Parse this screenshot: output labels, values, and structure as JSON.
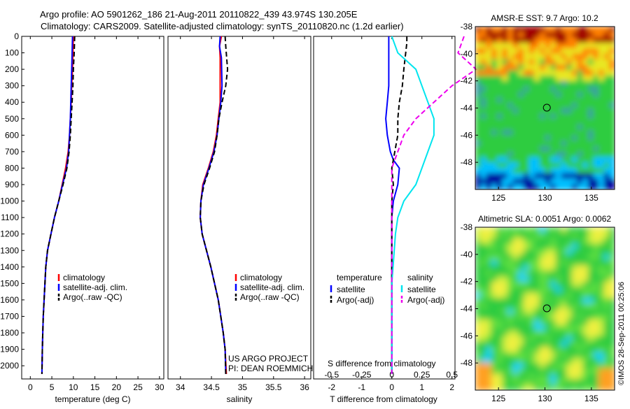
{
  "header": {
    "line1": "Argo profile: AO 5901262_186 21-Aug-2011 20110822_439 43.974S 130.205E",
    "line2": "Climatology: CARS2009. Satellite-adjusted climatology: synTS_20110820.nc (1.2d earlier)"
  },
  "chart_data": [
    {
      "type": "line",
      "id": "temperature",
      "xlabel": "temperature (deg C)",
      "ylabel": "",
      "xlim": [
        -2,
        31
      ],
      "ylim": [
        2080,
        0
      ],
      "xticks": [
        0,
        5,
        10,
        15,
        20,
        25,
        30
      ],
      "yticks": [
        0,
        100,
        200,
        300,
        400,
        500,
        600,
        700,
        800,
        900,
        1000,
        1100,
        1200,
        1300,
        1400,
        1500,
        1600,
        1700,
        1800,
        1900,
        2000
      ],
      "legend": [
        "climatology",
        "satellite-adj. clim.",
        "Argo(..raw -QC)"
      ],
      "colors": [
        "#ff0000",
        "#0000ff",
        "#000000"
      ],
      "series": [
        {
          "name": "climatology",
          "style": "solid",
          "x": [
            10.0,
            9.9,
            9.8,
            9.6,
            9.5,
            9.3,
            9.1,
            8.8,
            8.2,
            7.4,
            6.6,
            5.6,
            4.8,
            4.0,
            3.6,
            3.4,
            3.2,
            3.0,
            2.9,
            2.8,
            2.7
          ],
          "y": [
            0,
            100,
            200,
            300,
            400,
            500,
            600,
            700,
            800,
            900,
            1000,
            1100,
            1200,
            1300,
            1400,
            1500,
            1600,
            1700,
            1800,
            1900,
            2050
          ]
        },
        {
          "name": "satellite-adj. clim.",
          "style": "solid",
          "x": [
            9.8,
            9.7,
            9.6,
            9.5,
            9.4,
            9.3,
            9.1,
            8.9,
            8.4,
            7.5,
            6.6,
            5.6,
            4.8,
            4.0,
            3.6,
            3.4,
            3.2,
            3.0,
            2.9,
            2.8,
            2.7
          ],
          "y": [
            0,
            100,
            200,
            300,
            400,
            500,
            600,
            700,
            800,
            900,
            1000,
            1100,
            1200,
            1300,
            1400,
            1500,
            1600,
            1700,
            1800,
            1900,
            2050
          ]
        },
        {
          "name": "Argo(..raw -QC)",
          "style": "dashed",
          "x": [
            10.3,
            10.2,
            10.0,
            9.9,
            9.7,
            9.5,
            9.3,
            9.0,
            8.5,
            7.6,
            6.6,
            5.6,
            4.8,
            4.0,
            3.6,
            3.4,
            3.2,
            3.0,
            2.9,
            2.8,
            2.7
          ],
          "y": [
            0,
            100,
            200,
            300,
            400,
            500,
            600,
            700,
            800,
            900,
            1000,
            1100,
            1200,
            1300,
            1400,
            1500,
            1600,
            1700,
            1800,
            1900,
            2050
          ]
        }
      ],
      "annotations": []
    },
    {
      "type": "line",
      "id": "salinity",
      "xlabel": "salinity",
      "ylabel": "",
      "xlim": [
        33.8,
        36.1
      ],
      "ylim": [
        2080,
        0
      ],
      "xticks": [
        34,
        34.5,
        35,
        35.5,
        36
      ],
      "yticks": [],
      "legend": [
        "climatology",
        "satellite-adj. clim.",
        "Argo(..raw -QC)"
      ],
      "colors": [
        "#ff0000",
        "#0000ff",
        "#000000"
      ],
      "series": [
        {
          "name": "climatology",
          "style": "solid",
          "x": [
            34.66,
            34.63,
            34.64,
            34.64,
            34.64,
            34.61,
            34.58,
            34.53,
            34.45,
            34.36,
            34.33,
            34.32,
            34.35,
            34.42,
            34.49,
            34.55,
            34.61,
            34.65,
            34.69,
            34.72,
            34.74
          ],
          "y": [
            0,
            60,
            130,
            300,
            400,
            500,
            600,
            700,
            800,
            900,
            1000,
            1100,
            1200,
            1300,
            1400,
            1500,
            1600,
            1700,
            1800,
            1900,
            2050
          ]
        },
        {
          "name": "satellite-adj. clim.",
          "style": "solid",
          "x": [
            34.64,
            34.63,
            34.66,
            34.67,
            34.65,
            34.62,
            34.59,
            34.54,
            34.46,
            34.37,
            34.33,
            34.32,
            34.35,
            34.42,
            34.49,
            34.55,
            34.61,
            34.65,
            34.69,
            34.72,
            34.73
          ],
          "y": [
            0,
            60,
            130,
            300,
            400,
            500,
            600,
            700,
            800,
            900,
            1000,
            1100,
            1200,
            1300,
            1400,
            1500,
            1600,
            1700,
            1800,
            1900,
            2050
          ]
        },
        {
          "name": "Argo(..raw -QC)",
          "style": "dashed",
          "x": [
            34.72,
            34.73,
            34.76,
            34.73,
            34.67,
            34.62,
            34.59,
            34.55,
            34.47,
            34.38,
            34.33,
            34.32,
            34.35,
            34.42,
            34.49,
            34.55,
            34.61,
            34.65,
            34.69,
            34.72,
            34.73
          ],
          "y": [
            0,
            60,
            200,
            300,
            400,
            500,
            600,
            700,
            800,
            900,
            1000,
            1100,
            1200,
            1300,
            1400,
            1500,
            1600,
            1700,
            1800,
            1900,
            2050
          ]
        }
      ],
      "annotations": [
        "US ARGO PROJECT",
        "PI: DEAN ROEMMICH"
      ]
    },
    {
      "type": "line",
      "id": "difference",
      "xlabel": "T difference from climatology",
      "xlabel_top": "S difference from climatology",
      "ylabel": "",
      "xlim": [
        -2.6,
        2.1
      ],
      "ylim": [
        2080,
        0
      ],
      "xticks": [
        -2,
        -1,
        0,
        1,
        2
      ],
      "xticklabels": [
        "-2",
        "-1",
        "0",
        "1",
        "2"
      ],
      "sticks": [
        -0.5,
        -0.25,
        0,
        0.25,
        0.5
      ],
      "sticklabels": [
        "-0.5",
        "-0.25",
        "0",
        "0.25",
        "0.5"
      ],
      "yticks": [],
      "legend_headers": [
        "temperature",
        "salinity"
      ],
      "legend": [
        "satellite",
        "Argo(-adj)",
        "satellite",
        "Argo(-adj)"
      ],
      "colors": [
        "#0000ff",
        "#000000",
        "#00e5ee",
        "#ee00ee"
      ],
      "series": [
        {
          "name": "temperature satellite",
          "style": "solid",
          "x": [
            -0.1,
            -0.1,
            -0.1,
            -0.1,
            -0.15,
            -0.2,
            -0.15,
            -0.05,
            0.05,
            0.25,
            0.2,
            0.05,
            0.0,
            0.0,
            0.0,
            0.0,
            0.0,
            0.0,
            0.0,
            0.0,
            0.0
          ],
          "y": [
            0,
            100,
            200,
            300,
            400,
            500,
            600,
            700,
            750,
            800,
            900,
            1000,
            1100,
            1200,
            1300,
            1400,
            1500,
            1600,
            1700,
            1800,
            2050
          ]
        },
        {
          "name": "temperature Argo(-adj)",
          "style": "dashed",
          "x": [
            0.5,
            0.5,
            0.4,
            0.35,
            0.25,
            0.2,
            0.2,
            0.1,
            0.05,
            0.0,
            0.05,
            0.0,
            0.0,
            0.0,
            0.0,
            0.0,
            0.0,
            0.0,
            0.0,
            0.0,
            0.0
          ],
          "y": [
            0,
            40,
            200,
            300,
            400,
            500,
            600,
            700,
            750,
            800,
            900,
            1000,
            1100,
            1200,
            1300,
            1400,
            1500,
            1600,
            1700,
            1800,
            2050
          ]
        },
        {
          "name": "salinity satellite",
          "style": "solid",
          "x": [
            0.0,
            0.05,
            0.2,
            0.25,
            0.3,
            0.35,
            0.35,
            0.3,
            0.25,
            0.2,
            0.1,
            0.05,
            0.03,
            0.02,
            0.01,
            0.0,
            0.0,
            0.0,
            0.0,
            0.0,
            0.0
          ],
          "y": [
            0,
            100,
            200,
            300,
            400,
            500,
            600,
            700,
            800,
            900,
            1000,
            1100,
            1200,
            1300,
            1400,
            1500,
            1600,
            1700,
            1800,
            1900,
            2050
          ]
        },
        {
          "name": "salinity Argo(-adj)",
          "style": "dashed",
          "x": [
            0.6,
            0.55,
            0.7,
            0.5,
            0.35,
            0.2,
            0.1,
            0.05,
            0.0,
            0.0,
            0.0,
            0.0,
            0.0,
            0.0,
            0.0,
            0.0,
            0.0,
            0.0,
            0.0,
            0.0,
            0.0
          ],
          "y": [
            0,
            100,
            200,
            300,
            400,
            500,
            600,
            700,
            800,
            900,
            1000,
            1100,
            1200,
            1300,
            1400,
            1500,
            1600,
            1700,
            1800,
            1900,
            2050
          ]
        }
      ],
      "annotations": []
    },
    {
      "type": "heatmap",
      "id": "sst_map",
      "title": "AMSR-E SST: 9.7 Argo: 10.2",
      "xlim": [
        122.5,
        137.5
      ],
      "ylim": [
        -50,
        -38
      ],
      "xticks": [
        125,
        130,
        135
      ],
      "yticks": [
        -38,
        -40,
        -42,
        -44,
        -46,
        -48
      ],
      "marker": {
        "lon": 130.205,
        "lat": -43.974
      },
      "colors": [
        "#0000a0",
        "#00c0ff",
        "#2ecc40",
        "#e8e820",
        "#ff8000",
        "#a00000"
      ]
    },
    {
      "type": "heatmap",
      "id": "sla_map",
      "title": "Altimetric SLA: 0.0051 Argo: 0.0062",
      "xlim": [
        122.5,
        137.5
      ],
      "ylim": [
        -50,
        -38
      ],
      "xticks": [
        125,
        130,
        135
      ],
      "yticks": [
        -38,
        -40,
        -42,
        -44,
        -46,
        -48
      ],
      "marker": {
        "lon": 130.205,
        "lat": -43.974
      },
      "colors": [
        "#2ecc40",
        "#60e040",
        "#c8f040",
        "#f0f040",
        "#ffa020",
        "#00d0ff"
      ]
    }
  ],
  "credit": "©IMOS 28-Sep-2011 00:25:06"
}
